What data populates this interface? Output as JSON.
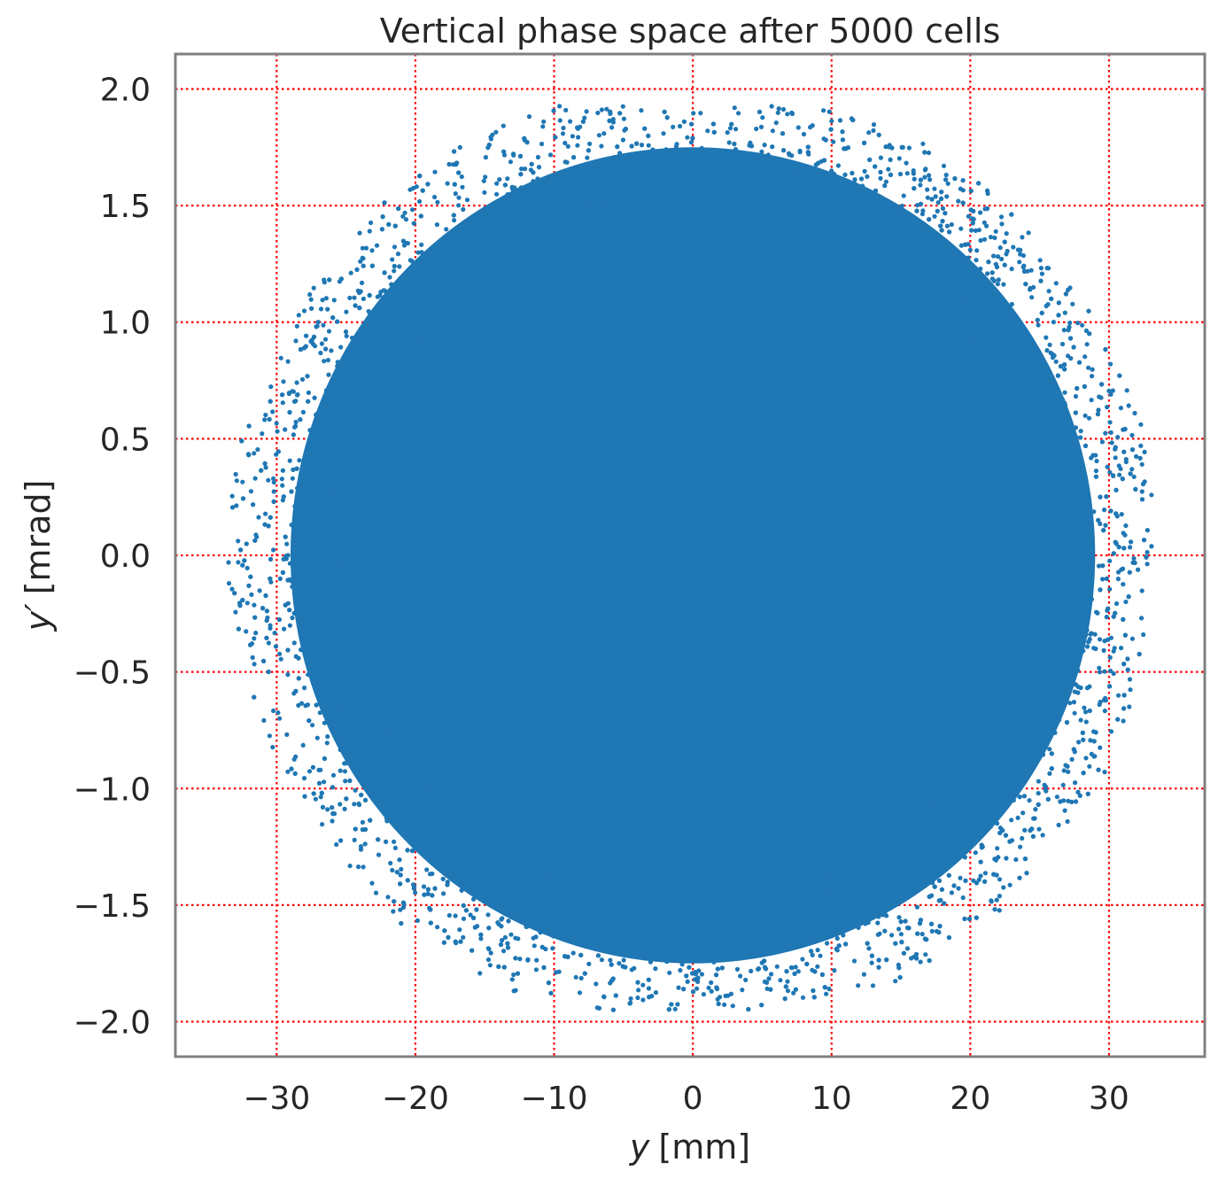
{
  "chart_data": {
    "type": "scatter",
    "title": "Vertical phase space after 5000 cells",
    "xlabel_var": "y",
    "xlabel_unit": "[mm]",
    "ylabel_var": "y′",
    "ylabel_unit": "[mrad]",
    "xlim": [
      -37.3,
      36.9
    ],
    "ylim": [
      -2.15,
      2.15
    ],
    "x_ticks": [
      -30,
      -20,
      -10,
      0,
      10,
      20,
      30
    ],
    "y_ticks": [
      -2.0,
      -1.5,
      -1.0,
      -0.5,
      0.0,
      0.5,
      1.0,
      1.5,
      2.0
    ],
    "x_tick_labels": [
      "−30",
      "−20",
      "−10",
      "0",
      "10",
      "20",
      "30"
    ],
    "y_tick_labels": [
      "−2.0",
      "−1.5",
      "−1.0",
      "−0.5",
      "0.0",
      "0.5",
      "1.0",
      "1.5",
      "2.0"
    ],
    "grid": true,
    "legend": "none",
    "distribution": {
      "shape": "filled circular cloud of particles",
      "center": [
        0,
        0
      ],
      "core_radius": {
        "x_mm": 29.0,
        "y_mrad": 1.75
      },
      "max_extent": {
        "x_mm": [
          -34.5,
          33.2
        ],
        "y_mrad": [
          -1.95,
          1.93
        ]
      }
    },
    "colors": {
      "points": "#1f77b4",
      "grid": "#ff0000",
      "frame": "#808080",
      "text": "#262626"
    }
  }
}
